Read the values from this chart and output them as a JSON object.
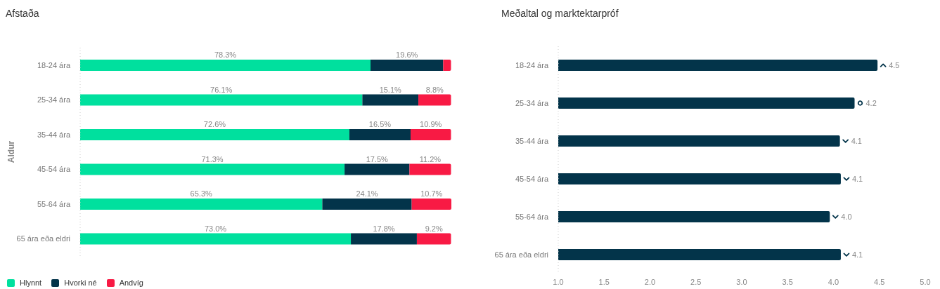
{
  "chart_data": [
    {
      "type": "bar",
      "orientation": "horizontal",
      "stacked": true,
      "title": "Afstaða",
      "ylabel": "Aldur",
      "tick_labels": "y",
      "legend": "bottom left",
      "categories": [
        "18-24 ára",
        "25-34 ára",
        "35-44 ára",
        "45-54 ára",
        "55-64 ára",
        "65 ára eða eldri"
      ],
      "series": [
        {
          "name": "Hlynnt",
          "color": "#00e09e",
          "values": [
            78.3,
            76.1,
            72.6,
            71.3,
            65.3,
            73.0
          ],
          "value_labels": [
            "78.3%",
            "76.1%",
            "72.6%",
            "71.3%",
            "65.3%",
            "73.0%"
          ]
        },
        {
          "name": "Hvorki né",
          "color": "#03344a",
          "values": [
            19.6,
            15.1,
            16.5,
            17.5,
            24.1,
            17.8
          ],
          "value_labels": [
            "19.6%",
            "15.1%",
            "16.5%",
            "17.5%",
            "24.1%",
            "17.8%"
          ]
        },
        {
          "name": "Andvíg",
          "color": "#f81a44",
          "values": [
            2.1,
            8.8,
            10.9,
            11.2,
            10.7,
            9.2
          ],
          "value_labels": [
            null,
            "8.8%",
            "10.9%",
            "11.2%",
            "10.7%",
            "9.2%"
          ]
        }
      ]
    },
    {
      "type": "bar",
      "orientation": "horizontal",
      "title": "Meðaltal og marktektarpróf",
      "categories": [
        "18-24 ára",
        "25-34 ára",
        "35-44 ára",
        "45-54 ára",
        "55-64 ára",
        "65 ára eða eldri"
      ],
      "values": [
        4.48,
        4.23,
        4.07,
        4.08,
        3.96,
        4.08
      ],
      "value_labels": [
        "4.5",
        "4.2",
        "4.1",
        "4.1",
        "4.0",
        "4.1"
      ],
      "color": "#03344a",
      "xlim": [
        1,
        5
      ],
      "xticks": [
        {
          "value": 1,
          "label": "1.0"
        },
        {
          "value": 1.5,
          "label": "1.5"
        },
        {
          "value": 2,
          "label": "2.0"
        },
        {
          "value": 2.5,
          "label": "2.5"
        },
        {
          "value": 3,
          "label": "3.0"
        },
        {
          "value": 3.5,
          "label": "3.5"
        },
        {
          "value": 4,
          "label": "4.0"
        },
        {
          "value": 4.5,
          "label": "4.5"
        },
        {
          "value": 5,
          "label": "5.0"
        }
      ]
    }
  ]
}
